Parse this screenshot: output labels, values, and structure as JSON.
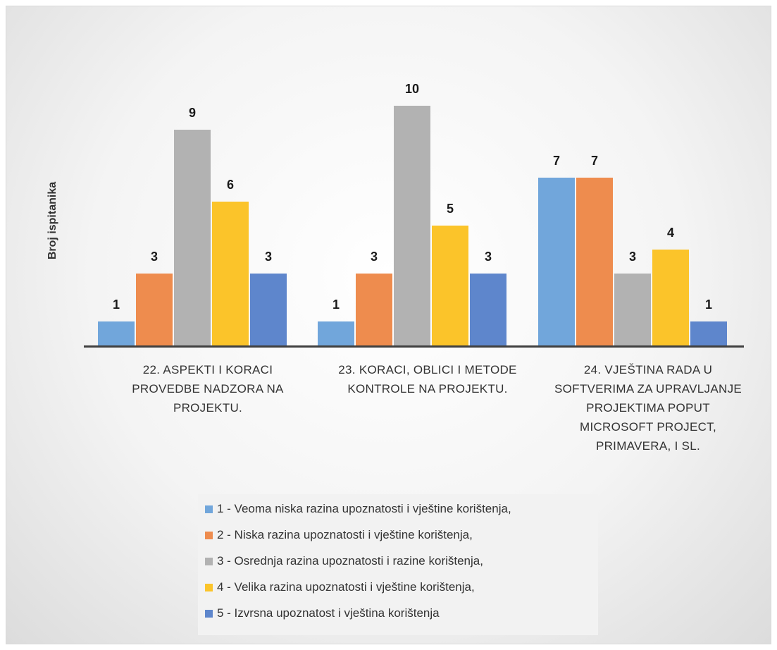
{
  "chart_data": {
    "type": "bar",
    "ylabel": "Broj ispitanika",
    "ylim": [
      0,
      10
    ],
    "grid": false,
    "legend_position": "bottom",
    "categories": [
      [
        "22. ASPEKTI I KORACI",
        "PROVEDBE NADZORA NA",
        "PROJEKTU."
      ],
      [
        "23. KORACI, OBLICI I METODE",
        "KONTROLE NA PROJEKTU."
      ],
      [
        "24. VJEŠTINA RADA U",
        "SOFTVERIMA ZA UPRAVLJANJE",
        "PROJEKTIMA POPUT",
        "MICROSOFT PROJECT,",
        "PRIMAVERA, I SL."
      ]
    ],
    "series": [
      {
        "name": "1 - Veoma niska razina upoznatosti i vještine korištenja,",
        "color": "#71a6db",
        "values": [
          1,
          1,
          7
        ]
      },
      {
        "name": "2 - Niska razina upoznatosti i vještine korištenja,",
        "color": "#ee8c4e",
        "values": [
          3,
          3,
          7
        ]
      },
      {
        "name": "3 - Osrednja razina upoznatosti i razine korištenja,",
        "color": "#b2b2b2",
        "values": [
          9,
          10,
          3
        ]
      },
      {
        "name": "4 - Velika razina upoznatosti i vještine korištenja,",
        "color": "#fbc42a",
        "values": [
          6,
          5,
          4
        ]
      },
      {
        "name": "5 - Izvrsna upoznatost i vještina korištenja",
        "color": "#5e86cc",
        "values": [
          3,
          3,
          1
        ]
      }
    ]
  }
}
